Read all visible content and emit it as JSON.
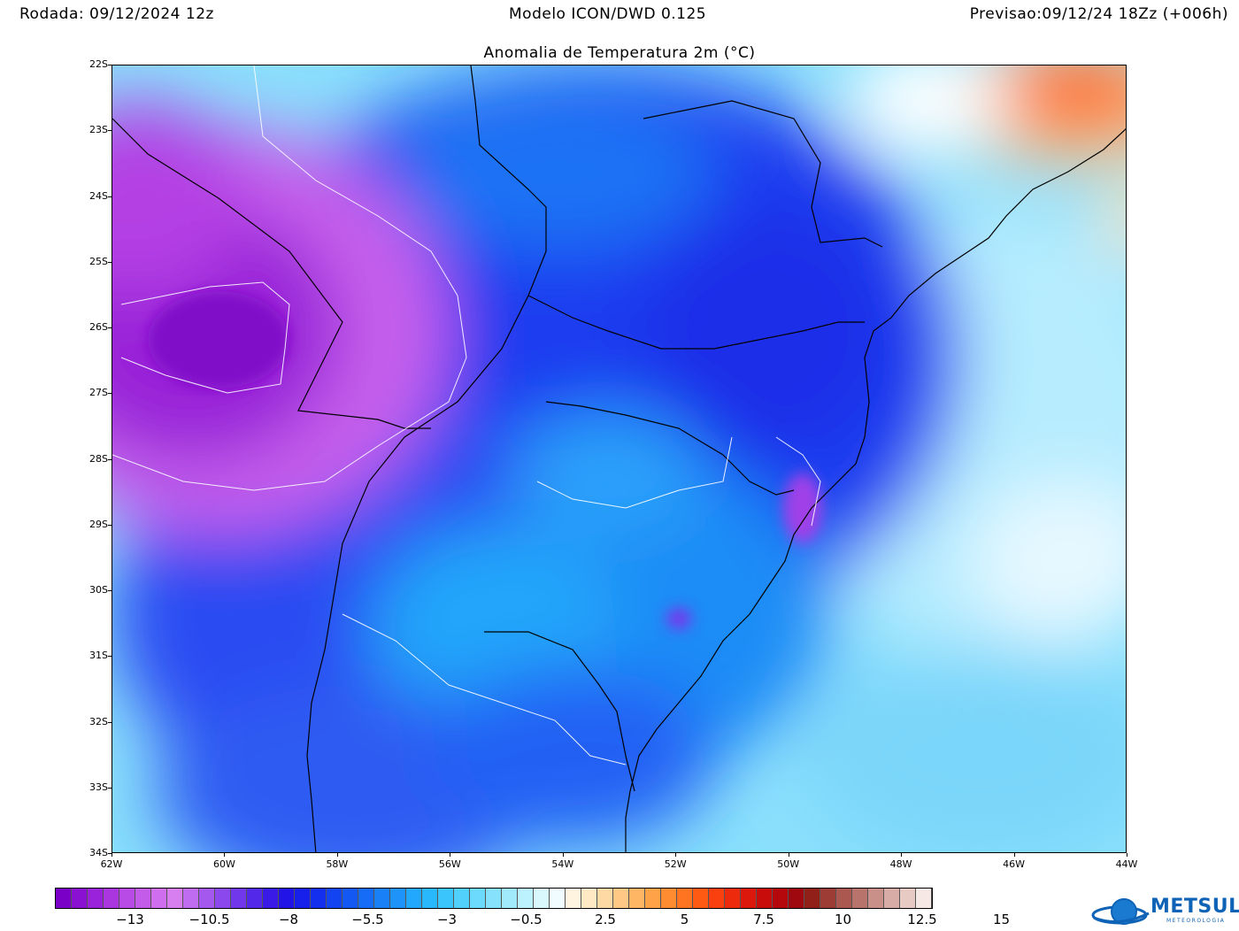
{
  "header": {
    "run": "Rodada: 09/12/2024 12z",
    "model": "Modelo ICON/DWD 0.125",
    "forecast": "Previsao:09/12/24 18Zz (+006h)"
  },
  "title": "Anomalia de Temperatura 2m (°C)",
  "map": {
    "lat_labels": [
      "22S",
      "23S",
      "24S",
      "25S",
      "26S",
      "27S",
      "28S",
      "29S",
      "30S",
      "31S",
      "32S",
      "33S",
      "34S"
    ],
    "lon_labels": [
      "62W",
      "60W",
      "58W",
      "56W",
      "54W",
      "52W",
      "50W",
      "48W",
      "46W",
      "44W"
    ],
    "field": "temperature anomaly",
    "units": "°C"
  },
  "colorbar": {
    "labels": [
      "−13",
      "−10.5",
      "−8",
      "−5.5",
      "−3",
      "−0.5",
      "2.5",
      "5",
      "7.5",
      "10",
      "12.5",
      "15"
    ],
    "colors": [
      "#7a00c8",
      "#8a10d2",
      "#9a22da",
      "#aa36e0",
      "#b84ae6",
      "#c45cea",
      "#cf6eee",
      "#d77ef1",
      "#c06cf0",
      "#a558ee",
      "#8b48ec",
      "#7038ea",
      "#5428e8",
      "#3a1ae6",
      "#2214e6",
      "#1620ea",
      "#1430ee",
      "#1244f2",
      "#1458f4",
      "#166cf6",
      "#1a80f8",
      "#1e94fa",
      "#22a8fc",
      "#2ab8fc",
      "#3ac6fc",
      "#52d0fc",
      "#6cdafc",
      "#86e2fc",
      "#a0eafc",
      "#bcf2fe",
      "#d8f8fe",
      "#f0fcff",
      "#fff4e0",
      "#ffe8c4",
      "#ffd9a4",
      "#ffc884",
      "#ffb664",
      "#ffa248",
      "#ff8c30",
      "#ff7420",
      "#ff5a14",
      "#fa400e",
      "#ee2a0c",
      "#dc180c",
      "#c80c0c",
      "#b4080c",
      "#a00810",
      "#902018",
      "#9c3c34",
      "#aa5850",
      "#b8746c",
      "#c89088",
      "#d8aca6",
      "#e8cac4",
      "#f6e8e4"
    ]
  },
  "brand": {
    "name": "METSUL",
    "subtitle": "METEOROLOGIA",
    "color": "#0e63b6"
  }
}
